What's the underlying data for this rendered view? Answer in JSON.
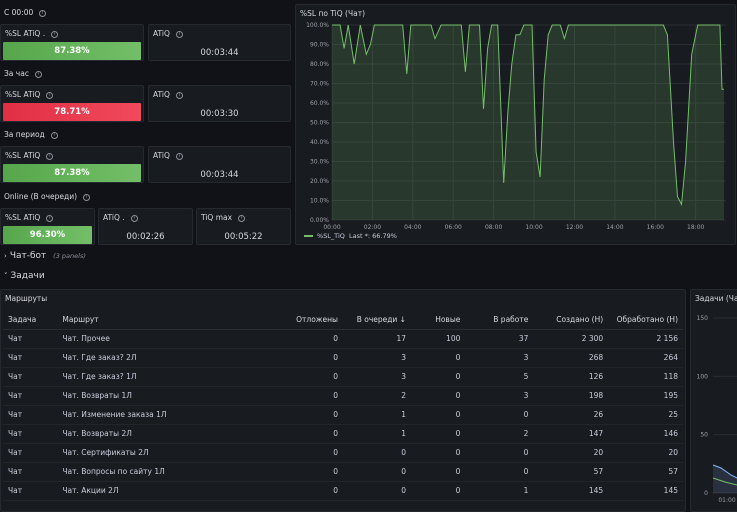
{
  "sections": {
    "since_midnight": "С 00:00",
    "per_hour": "За час",
    "per_period": "За период",
    "online_queue": "Online (В очереди)"
  },
  "stats": {
    "sl_title": "%SL ATiQ .",
    "sl_title_plain": "%SL ATiQ",
    "atiq_title": "ATiQ",
    "atiq_dot_title": "ATiQ .",
    "tiq_max_title": "TiQ max",
    "since_midnight_sl": "87.38%",
    "since_midnight_atiq": "00:03:44",
    "per_hour_sl": "78.71%",
    "per_hour_atiq": "00:03:30",
    "per_period_sl": "87.38%",
    "per_period_atiq": "00:03:44",
    "online_sl": "96.30%",
    "online_atiq": "00:02:26",
    "online_tiq_max": "00:05:22"
  },
  "chart_panel": {
    "title": "%SL по TiQ (Чат)",
    "legend_label": "%SL_TiQ",
    "legend_last": "Last *: 66.79%"
  },
  "chart_data": {
    "type": "line",
    "x_ticks": [
      "00:00",
      "02:00",
      "04:00",
      "06:00",
      "08:00",
      "10:00",
      "12:00",
      "14:00",
      "16:00",
      "18:00"
    ],
    "y_ticks": [
      "0.00%",
      "10.0%",
      "20.0%",
      "30.0%",
      "40.0%",
      "50.0%",
      "60.0%",
      "70.0%",
      "80.0%",
      "90.0%",
      "100.0%"
    ],
    "ylim": [
      0,
      100
    ],
    "xlim": [
      0,
      19.5
    ],
    "series": [
      {
        "name": "%SL_TiQ",
        "points": [
          [
            0,
            100
          ],
          [
            0.4,
            100
          ],
          [
            0.6,
            88
          ],
          [
            0.8,
            100
          ],
          [
            1.1,
            80
          ],
          [
            1.4,
            100
          ],
          [
            1.7,
            85
          ],
          [
            1.9,
            90
          ],
          [
            2.1,
            100
          ],
          [
            3.5,
            100
          ],
          [
            3.7,
            75
          ],
          [
            3.9,
            100
          ],
          [
            4.9,
            100
          ],
          [
            5.1,
            93
          ],
          [
            5.4,
            100
          ],
          [
            6.4,
            100
          ],
          [
            6.6,
            76
          ],
          [
            6.8,
            100
          ],
          [
            7.3,
            100
          ],
          [
            7.5,
            57
          ],
          [
            7.7,
            88
          ],
          [
            7.9,
            100
          ],
          [
            8.2,
            100
          ],
          [
            8.5,
            19
          ],
          [
            8.7,
            55
          ],
          [
            8.9,
            80
          ],
          [
            9.1,
            95
          ],
          [
            9.3,
            95
          ],
          [
            9.5,
            100
          ],
          [
            9.9,
            100
          ],
          [
            10.1,
            35
          ],
          [
            10.3,
            22
          ],
          [
            10.5,
            72
          ],
          [
            10.7,
            95
          ],
          [
            10.9,
            100
          ],
          [
            11.3,
            100
          ],
          [
            11.5,
            93
          ],
          [
            11.7,
            100
          ],
          [
            16.4,
            100
          ],
          [
            16.6,
            95
          ],
          [
            16.9,
            40
          ],
          [
            17.1,
            12
          ],
          [
            17.3,
            8
          ],
          [
            17.5,
            30
          ],
          [
            17.8,
            85
          ],
          [
            18.1,
            100
          ],
          [
            19.2,
            100
          ],
          [
            19.3,
            67
          ],
          [
            19.4,
            67
          ]
        ]
      }
    ],
    "line_color": "#73bf69"
  },
  "rows": {
    "chatbot": "Чат-бот",
    "chatbot_note": "(3 panels)",
    "tasks": "Задачи"
  },
  "routes_panel": {
    "title": "Маршруты",
    "columns": [
      "Задача",
      "Маршрут",
      "Отложены",
      "В очереди ↓",
      "Новые",
      "В работе",
      "Создано (Н)",
      "Обработано (Н)"
    ],
    "rows": [
      [
        "Чат",
        "Чат. Прочее",
        "0",
        "17",
        "100",
        "37",
        "2 300",
        "2 156"
      ],
      [
        "Чат",
        "Чат. Где заказ? 2Л",
        "0",
        "3",
        "0",
        "3",
        "268",
        "264"
      ],
      [
        "Чат",
        "Чат. Где заказ? 1Л",
        "0",
        "3",
        "0",
        "5",
        "126",
        "118"
      ],
      [
        "Чат",
        "Чат. Возвраты 1Л",
        "0",
        "2",
        "0",
        "3",
        "198",
        "195"
      ],
      [
        "Чат",
        "Чат. Изменение заказа 1Л",
        "0",
        "1",
        "0",
        "0",
        "26",
        "25"
      ],
      [
        "Чат",
        "Чат. Возвраты 2Л",
        "0",
        "1",
        "0",
        "2",
        "147",
        "146"
      ],
      [
        "Чат",
        "Чат. Сертификаты 2Л",
        "0",
        "0",
        "0",
        "0",
        "20",
        "20"
      ],
      [
        "Чат",
        "Чат. Вопросы по сайту 1Л",
        "0",
        "0",
        "0",
        "0",
        "57",
        "57"
      ],
      [
        "Чат",
        "Чат. Акции 2Л",
        "0",
        "0",
        "0",
        "1",
        "145",
        "145"
      ]
    ]
  },
  "tasks_panel": {
    "title": "Задачи (Чат",
    "y_ticks": [
      "150",
      "100",
      "50",
      "0"
    ],
    "x_tick": "01:00"
  }
}
